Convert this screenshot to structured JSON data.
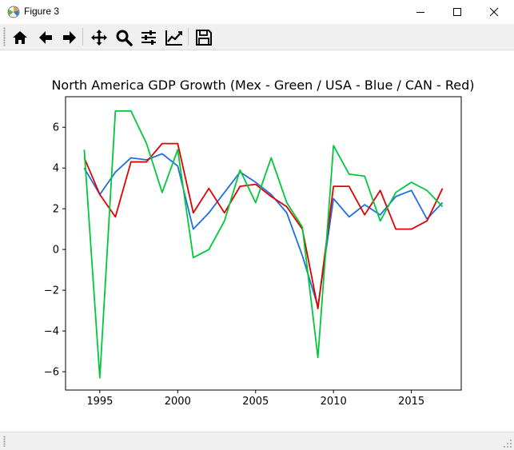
{
  "window": {
    "title": "Figure 3",
    "icon": "matplotlib-figure-icon",
    "controls": [
      "minimize-icon",
      "maximize-icon",
      "close-icon"
    ]
  },
  "toolbar": {
    "buttons": [
      {
        "name": "home-button",
        "icon": "home-icon"
      },
      {
        "name": "back-button",
        "icon": "arrow-left-icon"
      },
      {
        "name": "forward-button",
        "icon": "arrow-right-icon"
      },
      {
        "name": "pan-button",
        "icon": "move-icon"
      },
      {
        "name": "zoom-button",
        "icon": "magnifier-icon"
      },
      {
        "name": "subplots-button",
        "icon": "sliders-icon"
      },
      {
        "name": "edit-axes-button",
        "icon": "line-chart-icon"
      },
      {
        "name": "save-button",
        "icon": "floppy-disk-icon"
      }
    ]
  },
  "chart_data": {
    "type": "line",
    "title": "North America GDP Growth (Mex - Green / USA - Blue / CAN - Red)",
    "xlabel": "",
    "ylabel": "",
    "xlim": [
      1992.8,
      2018.2
    ],
    "ylim": [
      -6.9,
      7.5
    ],
    "xticks": [
      1995,
      2000,
      2005,
      2010,
      2015
    ],
    "yticks": [
      -6,
      -4,
      -2,
      0,
      2,
      4,
      6
    ],
    "x": [
      1994,
      1995,
      1996,
      1997,
      1998,
      1999,
      2000,
      2001,
      2002,
      2003,
      2004,
      2005,
      2006,
      2007,
      2008,
      2009,
      2010,
      2011,
      2012,
      2013,
      2014,
      2015,
      2016,
      2017
    ],
    "series": [
      {
        "name": "",
        "color": "#1f6fe0",
        "values": [
          4.0,
          2.7,
          3.8,
          4.5,
          4.4,
          4.7,
          4.1,
          1.0,
          1.8,
          2.8,
          3.8,
          3.3,
          2.7,
          1.8,
          -0.3,
          -2.8,
          2.5,
          1.6,
          2.2,
          1.7,
          2.6,
          2.9,
          1.5,
          2.3
        ]
      },
      {
        "name": "",
        "color": "#e00000",
        "values": [
          4.5,
          2.7,
          1.6,
          4.3,
          4.3,
          5.2,
          5.2,
          1.8,
          3.0,
          1.8,
          3.1,
          3.2,
          2.6,
          2.1,
          1.0,
          -2.9,
          3.1,
          3.1,
          1.7,
          2.9,
          1.0,
          1.0,
          1.4,
          3.0
        ]
      },
      {
        "name": "",
        "color": "#00c83a",
        "values": [
          4.9,
          -6.3,
          6.8,
          6.8,
          5.2,
          2.8,
          4.9,
          -0.4,
          0.0,
          1.4,
          3.9,
          2.3,
          4.5,
          2.3,
          1.1,
          -5.3,
          5.1,
          3.7,
          3.6,
          1.4,
          2.8,
          3.3,
          2.9,
          2.1
        ]
      }
    ],
    "grid": false,
    "legend": "none"
  }
}
